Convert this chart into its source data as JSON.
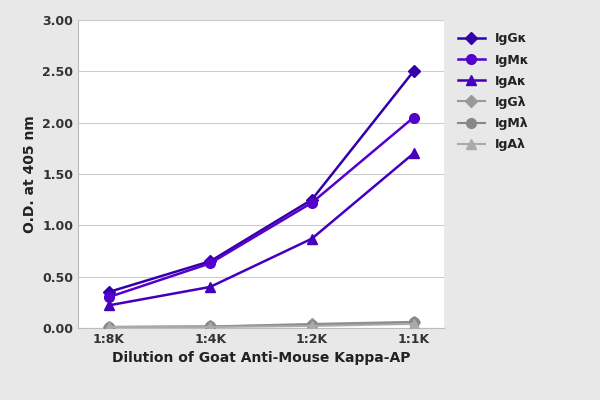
{
  "x_labels": [
    "1:8K",
    "1:4K",
    "1:2K",
    "1:1K"
  ],
  "x_positions": [
    0,
    1,
    2,
    3
  ],
  "series": [
    {
      "label": "IgGκ",
      "values": [
        0.35,
        0.65,
        1.25,
        2.5
      ],
      "color": "#3300aa",
      "marker": "D",
      "linestyle": "-",
      "linewidth": 1.8,
      "markersize": 6,
      "zorder": 5
    },
    {
      "label": "IgMκ",
      "values": [
        0.3,
        0.63,
        1.22,
        2.05
      ],
      "color": "#5500cc",
      "marker": "o",
      "linestyle": "-",
      "linewidth": 1.8,
      "markersize": 7,
      "zorder": 5
    },
    {
      "label": "IgAκ",
      "values": [
        0.22,
        0.4,
        0.87,
        1.7
      ],
      "color": "#4400bb",
      "marker": "^",
      "linestyle": "-",
      "linewidth": 1.8,
      "markersize": 7,
      "zorder": 5
    },
    {
      "label": "IgGλ",
      "values": [
        0.01,
        0.015,
        0.04,
        0.06
      ],
      "color": "#999999",
      "marker": "D",
      "linestyle": "-",
      "linewidth": 1.5,
      "markersize": 6,
      "zorder": 4
    },
    {
      "label": "IgMλ",
      "values": [
        0.01,
        0.015,
        0.03,
        0.055
      ],
      "color": "#888888",
      "marker": "o",
      "linestyle": "-",
      "linewidth": 1.5,
      "markersize": 7,
      "zorder": 4
    },
    {
      "label": "IgAλ",
      "values": [
        0.01,
        0.01,
        0.02,
        0.04
      ],
      "color": "#aaaaaa",
      "marker": "^",
      "linestyle": "-",
      "linewidth": 1.5,
      "markersize": 7,
      "zorder": 4
    }
  ],
  "xlabel": "Dilution of Goat Anti-Mouse Kappa-AP",
  "ylabel": "O.D. at 405 nm",
  "ylim": [
    0.0,
    3.0
  ],
  "yticks": [
    0.0,
    0.5,
    1.0,
    1.5,
    2.0,
    2.5,
    3.0
  ],
  "background_color": "#e8e8e8",
  "plot_background": "#ffffff",
  "grid_color": "#cccccc",
  "legend_fontsize": 9,
  "axis_label_fontsize": 10,
  "tick_fontsize": 9
}
